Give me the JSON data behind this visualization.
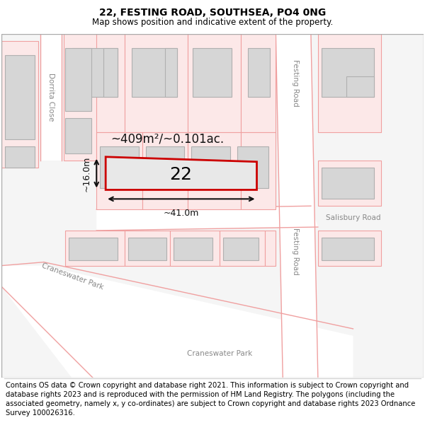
{
  "title": "22, FESTING ROAD, SOUTHSEA, PO4 0NG",
  "subtitle": "Map shows position and indicative extent of the property.",
  "footer": "Contains OS data © Crown copyright and database right 2021. This information is subject to Crown copyright and database rights 2023 and is reproduced with the permission of HM Land Registry. The polygons (including the associated geometry, namely x, y co-ordinates) are subject to Crown copyright and database rights 2023 Ordnance Survey 100026316.",
  "map_bg": "#f5f5f5",
  "building_fill": "#d6d6d6",
  "building_edge": "#b0b0b0",
  "road_white": "#ffffff",
  "pink_line": "#f0a0a0",
  "pink_fill": "#fce8e8",
  "red_edge": "#cc0000",
  "highlight_fill": "#e8e8e8",
  "street_color": "#888888",
  "ann_color": "#111111",
  "area_label": "~409m²/~0.101ac.",
  "width_label": "~41.0m",
  "height_label": "~16.0m",
  "property_number": "22",
  "title_fontsize": 10,
  "subtitle_fontsize": 8.5,
  "footer_fontsize": 7.2,
  "street_fontsize": 7.5
}
